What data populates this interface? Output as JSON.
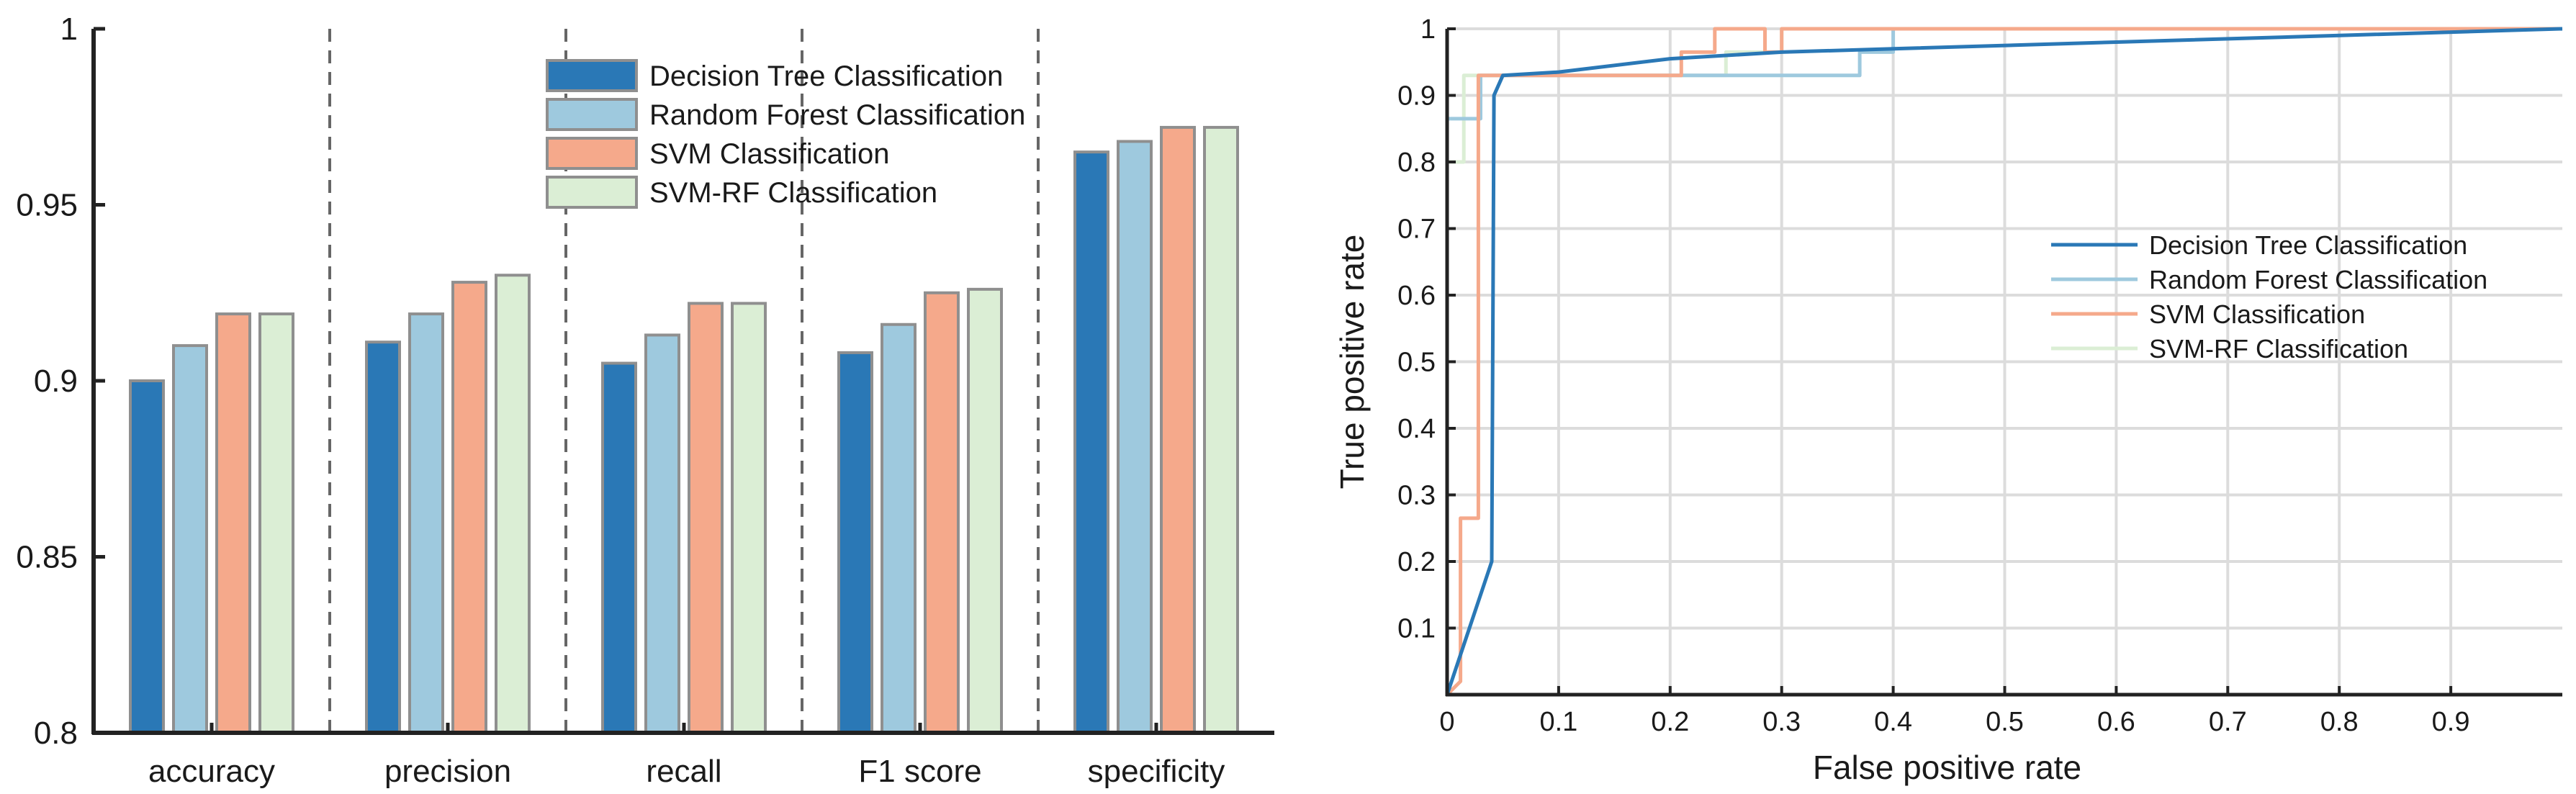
{
  "chart_data": [
    {
      "type": "bar",
      "categories": [
        "accuracy",
        "precision",
        "recall",
        "F1 score",
        "specificity"
      ],
      "series": [
        {
          "name": "Decision Tree Classification",
          "color": "#2a78b6",
          "values": [
            0.9,
            0.911,
            0.905,
            0.908,
            0.965
          ]
        },
        {
          "name": "Random Forest Classification",
          "color": "#9ec9de",
          "values": [
            0.91,
            0.919,
            0.913,
            0.916,
            0.968
          ]
        },
        {
          "name": "SVM Classification",
          "color": "#f5a98b",
          "values": [
            0.919,
            0.928,
            0.922,
            0.925,
            0.972
          ]
        },
        {
          "name": "SVM-RF Classification",
          "color": "#dbeed5",
          "values": [
            0.919,
            0.93,
            0.922,
            0.926,
            0.972
          ]
        }
      ],
      "ylim": [
        0.8,
        1.0
      ],
      "yticks": [
        "0.8",
        "0.85",
        "0.9",
        "0.95",
        "1"
      ],
      "xlabel": "",
      "ylabel": "",
      "legend": "top-right",
      "grid": false
    },
    {
      "type": "line",
      "xlabel": "False positive rate",
      "ylabel": "True positive rate",
      "xlim": [
        0,
        1.0
      ],
      "ylim": [
        0,
        1.0
      ],
      "xticks": [
        "0",
        "0.1",
        "0.2",
        "0.3",
        "0.4",
        "0.5",
        "0.6",
        "0.7",
        "0.8",
        "0.9"
      ],
      "yticks": [
        "0.1",
        "0.2",
        "0.3",
        "0.4",
        "0.5",
        "0.6",
        "0.7",
        "0.8",
        "0.9",
        "1"
      ],
      "grid": true,
      "legend": "center-right",
      "series": [
        {
          "name": "Decision Tree Classification",
          "color": "#2a78b6",
          "points": [
            [
              0,
              0
            ],
            [
              0.04,
              0.2
            ],
            [
              0.042,
              0.9
            ],
            [
              0.05,
              0.93
            ],
            [
              0.1,
              0.935
            ],
            [
              0.2,
              0.955
            ],
            [
              0.3,
              0.965
            ],
            [
              0.4,
              0.97
            ],
            [
              0.6,
              0.98
            ],
            [
              0.8,
              0.99
            ],
            [
              1.0,
              1.0
            ]
          ]
        },
        {
          "name": "Random Forest Classification",
          "color": "#9ec9de",
          "points": [
            [
              0,
              0.8
            ],
            [
              0,
              0.865
            ],
            [
              0.03,
              0.865
            ],
            [
              0.03,
              0.93
            ],
            [
              0.37,
              0.93
            ],
            [
              0.37,
              0.965
            ],
            [
              0.4,
              0.965
            ],
            [
              0.4,
              1.0
            ],
            [
              1.0,
              1.0
            ]
          ]
        },
        {
          "name": "SVM Classification",
          "color": "#f5a98b",
          "points": [
            [
              0,
              0
            ],
            [
              0.012,
              0.02
            ],
            [
              0.012,
              0.265
            ],
            [
              0.028,
              0.265
            ],
            [
              0.028,
              0.93
            ],
            [
              0.21,
              0.93
            ],
            [
              0.21,
              0.965
            ],
            [
              0.24,
              0.965
            ],
            [
              0.24,
              1.0
            ],
            [
              0.285,
              1.0
            ],
            [
              0.285,
              0.965
            ],
            [
              0.3,
              0.965
            ],
            [
              0.3,
              1.0
            ],
            [
              1.0,
              1.0
            ]
          ]
        },
        {
          "name": "SVM-RF Classification",
          "color": "#dbeed5",
          "points": [
            [
              0,
              0.8
            ],
            [
              0.015,
              0.8
            ],
            [
              0.015,
              0.93
            ],
            [
              0.25,
              0.93
            ],
            [
              0.25,
              0.965
            ],
            [
              0.3,
              0.965
            ],
            [
              0.3,
              1.0
            ],
            [
              1.0,
              1.0
            ]
          ]
        }
      ]
    }
  ]
}
